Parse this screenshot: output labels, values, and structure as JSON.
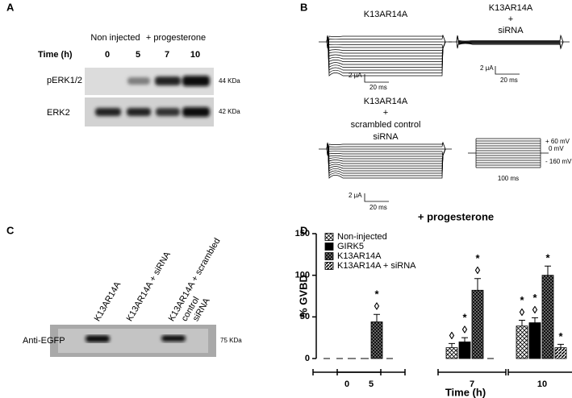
{
  "panels": {
    "a": {
      "label": "A",
      "groups": [
        "Non injected",
        "+ progesterone"
      ],
      "time_label": "Time (h)",
      "lanes": [
        "0",
        "5",
        "7",
        "10"
      ],
      "rows": [
        "pERK1/2",
        "ERK2"
      ],
      "sizes": [
        "44 KDa",
        "42 KDa"
      ]
    },
    "b": {
      "label": "B",
      "traces": [
        {
          "lines": [
            "K13AR14A"
          ],
          "scale": [
            "2 μA",
            "20 ms"
          ]
        },
        {
          "lines": [
            "K13AR14A",
            "+",
            "siRNA"
          ],
          "scale": [
            "2 μA",
            "20 ms"
          ]
        },
        {
          "lines": [
            "K13AR14A",
            "+",
            "scrambled control",
            "siRNA"
          ],
          "scale": [
            "2 μA",
            "20 ms"
          ]
        }
      ],
      "protocol": [
        "+ 60 mV",
        "0 mV",
        "- 160 mV",
        "100 ms"
      ]
    },
    "c": {
      "label": "C",
      "lanes": [
        "K13AR14A",
        "K13AR14A + siRNA",
        "K13AR14A + scrambled",
        "control",
        "siRNA"
      ],
      "row": "Anti-EGFP",
      "size": "75 KDa"
    },
    "d": {
      "label": "D"
    }
  },
  "chart_data": {
    "type": "bar",
    "title": "+ progesterone",
    "y_label": "% GVBD",
    "x_label": "Time (h)",
    "categories": [
      "0",
      "5",
      "7",
      "10"
    ],
    "ylim": [
      0,
      150
    ],
    "yticks": [
      0,
      50,
      100,
      150
    ],
    "series": [
      {
        "name": "Non-injected",
        "color": "#000000",
        "pattern": "checker-light",
        "values": [
          0,
          0,
          13,
          39
        ],
        "errors": [
          0,
          0,
          5,
          7
        ],
        "marks": [
          [],
          [],
          [
            "◊"
          ],
          [
            "*",
            "◊"
          ]
        ]
      },
      {
        "name": "GIRK5",
        "color": "#000000",
        "pattern": "solid",
        "values": [
          0,
          0,
          20,
          43
        ],
        "errors": [
          0,
          0,
          5,
          6
        ],
        "marks": [
          [],
          [],
          [
            "*",
            "◊"
          ],
          [
            "*",
            "◊"
          ]
        ]
      },
      {
        "name": "K13AR14A",
        "color": "#000000",
        "pattern": "checker-dark",
        "values": [
          0,
          44,
          82,
          100
        ],
        "errors": [
          0,
          9,
          14,
          11
        ],
        "marks": [
          [],
          [
            "*",
            "◊"
          ],
          [
            "*",
            "◊"
          ],
          [
            "*"
          ]
        ]
      },
      {
        "name": "K13AR14A + siRNA",
        "color": "#000000",
        "pattern": "stripes",
        "values": [
          0,
          0,
          0,
          13
        ],
        "errors": [
          0,
          0,
          0,
          4
        ],
        "marks": [
          [],
          [],
          [],
          [
            "*"
          ]
        ]
      }
    ]
  }
}
